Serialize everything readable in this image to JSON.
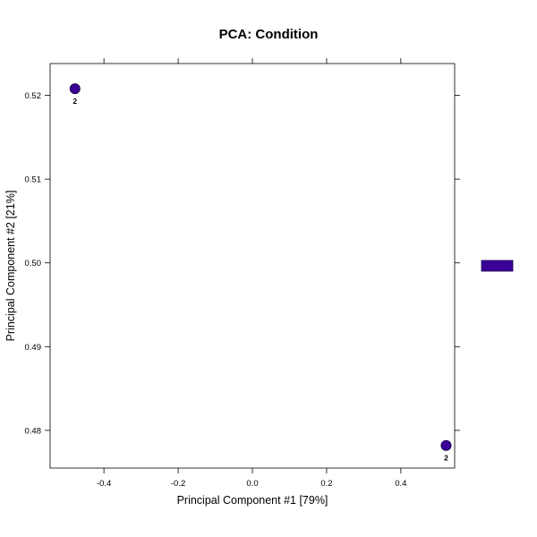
{
  "chart_data": {
    "type": "scatter",
    "title": "PCA: Condition",
    "xlabel": "Principal Component #1 [79%]",
    "ylabel": "Principal Component #2 [21%]",
    "xlim": [
      -0.545,
      0.545
    ],
    "ylim": [
      0.4755,
      0.5238
    ],
    "x_ticks": [
      -0.4,
      -0.2,
      0.0,
      0.2,
      0.4
    ],
    "x_tick_labels": [
      "-0.4",
      "-0.2",
      "0.0",
      "0.2",
      "0.4"
    ],
    "y_ticks": [
      0.48,
      0.49,
      0.5,
      0.51,
      0.52
    ],
    "y_tick_labels": [
      "0.48",
      "0.49",
      "0.50",
      "0.51",
      "0.52"
    ],
    "grid": false,
    "legend": "right",
    "series": [
      {
        "color": "#3a0098",
        "points": [
          {
            "x": -0.478,
            "y": 0.5208,
            "label": "2"
          },
          {
            "x": 0.522,
            "y": 0.4782,
            "label": "2"
          }
        ]
      }
    ]
  }
}
